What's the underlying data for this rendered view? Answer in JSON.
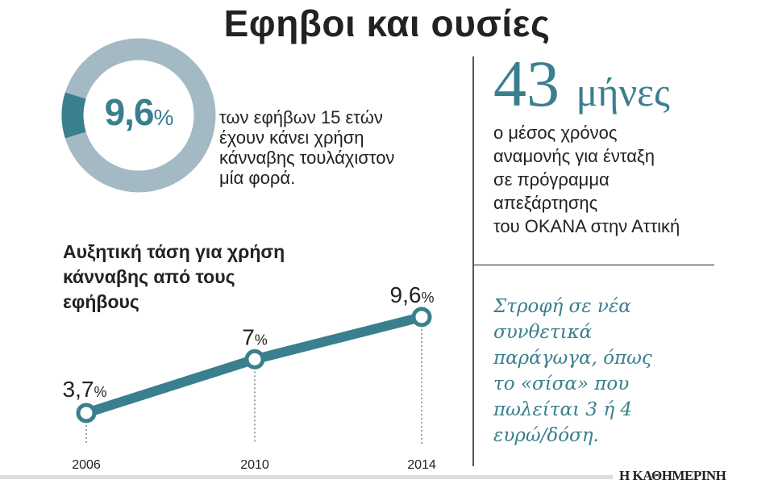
{
  "title": "Εφηβοι και ουσίες",
  "donut": {
    "value": "9,6",
    "unit": "%",
    "percent": 9.6,
    "text_lines": [
      "των εφήβων 15 ετών",
      "έχουν κάνει χρήση",
      "κάνναβης τουλάχιστον",
      "μία φορά."
    ],
    "colors": {
      "highlight": "#3a7f8e",
      "rest": "#a3bac5"
    }
  },
  "chart_data": {
    "type": "line",
    "title_lines": [
      "Αυξητική τάση για χρήση",
      "κάνναβης από τους",
      "εφήβους"
    ],
    "categories": [
      "2006",
      "2010",
      "2014"
    ],
    "values": [
      3.7,
      7,
      9.6
    ],
    "data_labels": [
      "3,7",
      "7",
      "9,6"
    ],
    "label_unit": "%",
    "color": "#3a7f8e",
    "grid": false
  },
  "wait": {
    "number": "43",
    "unit": "μήνες",
    "text_lines": [
      "ο μέσος χρόνος",
      "αναμονής για ένταξη",
      "σε πρόγραμμα",
      "απεξάρτησης",
      "του ΟΚΑΝΑ στην Αττική"
    ]
  },
  "quote_lines": [
    "Στροφή σε νέα",
    "συνθετικά",
    "παράγωγα, όπως",
    "το «σίσα» που",
    "πωλείται 3 ή 4",
    "ευρώ/δόση."
  ],
  "logo": "Η ΚΑΘΗΜΕΡΙΝΗ"
}
